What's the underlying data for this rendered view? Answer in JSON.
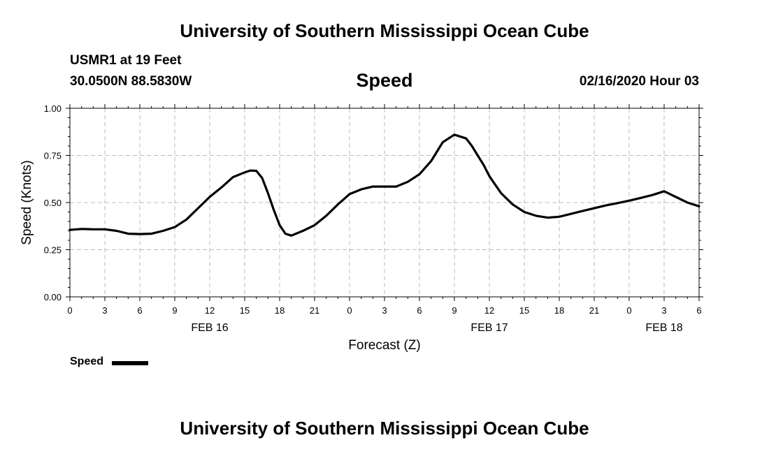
{
  "header": {
    "title": "University of Southern Mississippi Ocean Cube",
    "station": "USMR1 at 19 Feet",
    "coordinates": "30.0500N 88.5830W",
    "timestamp": "02/16/2020 Hour 03",
    "footer_title": "University of Southern Mississippi Ocean Cube"
  },
  "chart_data": {
    "type": "line",
    "title": "Speed",
    "xlabel": "Forecast (Z)",
    "ylabel": "Speed (Knots)",
    "ylim": [
      0,
      1
    ],
    "yticks": [
      "0.00",
      "0.25",
      "0.50",
      "0.75",
      "1.00"
    ],
    "xticks": [
      "0",
      "3",
      "6",
      "9",
      "12",
      "15",
      "18",
      "21",
      "0",
      "3",
      "6",
      "9",
      "12",
      "15",
      "18",
      "21",
      "0",
      "3",
      "6"
    ],
    "date_labels": [
      {
        "label": "FEB 16",
        "at_hour": 12
      },
      {
        "label": "FEB 17",
        "at_hour": 36
      },
      {
        "label": "FEB 18",
        "at_hour": 51
      }
    ],
    "x_range_hours": [
      0,
      54
    ],
    "grid": true,
    "legend": "bottom-left",
    "series": [
      {
        "name": "Speed",
        "color": "#000000",
        "x": [
          0,
          1,
          2,
          3,
          4,
          5,
          6,
          7,
          8,
          9,
          10,
          11,
          12,
          13,
          14,
          15,
          15.5,
          16,
          16.5,
          17,
          17.5,
          18,
          18.5,
          19,
          20,
          21,
          22,
          23,
          24,
          25,
          26,
          27,
          28,
          29,
          30,
          31,
          32,
          33,
          34,
          34.5,
          35,
          35.5,
          36,
          37,
          38,
          39,
          40,
          41,
          42,
          43,
          44,
          45,
          46,
          47,
          48,
          49,
          50,
          51,
          52,
          53,
          54
        ],
        "y": [
          0.355,
          0.36,
          0.358,
          0.358,
          0.35,
          0.335,
          0.333,
          0.335,
          0.35,
          0.37,
          0.41,
          0.47,
          0.53,
          0.58,
          0.635,
          0.66,
          0.67,
          0.668,
          0.63,
          0.55,
          0.46,
          0.38,
          0.335,
          0.325,
          0.35,
          0.38,
          0.43,
          0.49,
          0.545,
          0.57,
          0.585,
          0.585,
          0.585,
          0.61,
          0.65,
          0.72,
          0.82,
          0.86,
          0.84,
          0.8,
          0.75,
          0.7,
          0.64,
          0.55,
          0.49,
          0.45,
          0.43,
          0.42,
          0.425,
          0.44,
          0.455,
          0.47,
          0.485,
          0.497,
          0.51,
          0.525,
          0.54,
          0.56,
          0.53,
          0.5,
          0.48
        ]
      }
    ]
  }
}
